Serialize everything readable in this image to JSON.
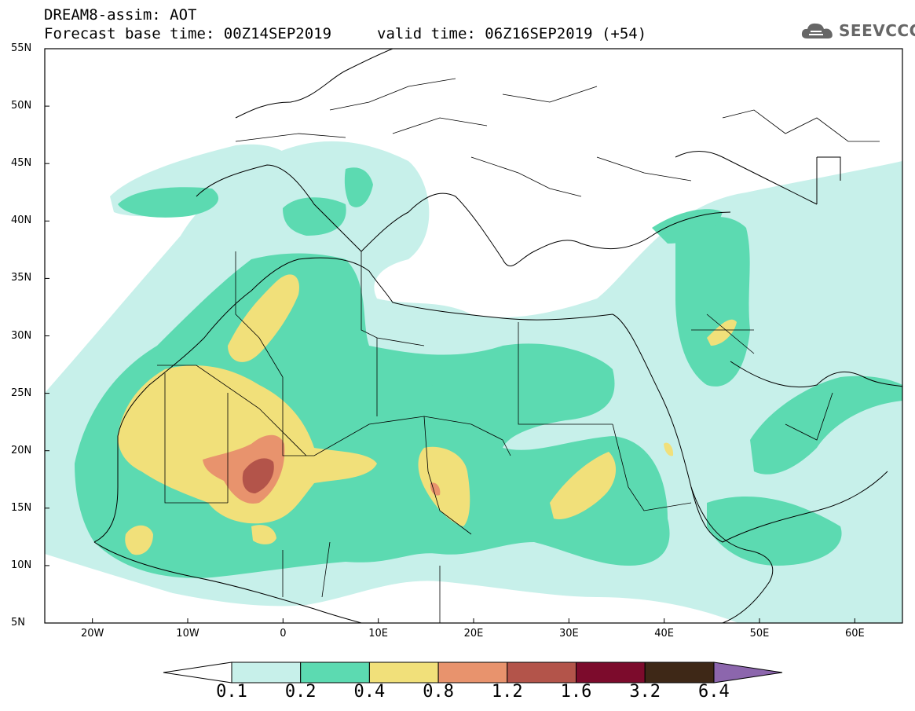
{
  "header": {
    "line1": "DREAM8-assim: AOT",
    "line2": "Forecast base time: 00Z14SEP2019",
    "valid": "valid time: 06Z16SEP2019 (+54)"
  },
  "logo": {
    "icon": "cloud-icon",
    "text": "SEEVCCC"
  },
  "axes": {
    "lat_labels": [
      "55N",
      "50N",
      "45N",
      "40N",
      "35N",
      "30N",
      "25N",
      "20N",
      "15N",
      "10N",
      "5N"
    ],
    "lon_labels": [
      "20W",
      "10W",
      "0",
      "10E",
      "20E",
      "30E",
      "40E",
      "50E",
      "60E"
    ],
    "lat_range": [
      5,
      55
    ],
    "lon_range": [
      -25,
      65
    ]
  },
  "colorbar": {
    "labels": [
      "0.1",
      "0.2",
      "0.4",
      "0.8",
      "1.2",
      "1.6",
      "3.2",
      "6.4"
    ],
    "colors": [
      "#c7f0ea",
      "#5cdab1",
      "#f1e07a",
      "#e8936d",
      "#b3544a",
      "#7c0b2c",
      "#3e2817",
      "#8c66ad"
    ]
  }
}
